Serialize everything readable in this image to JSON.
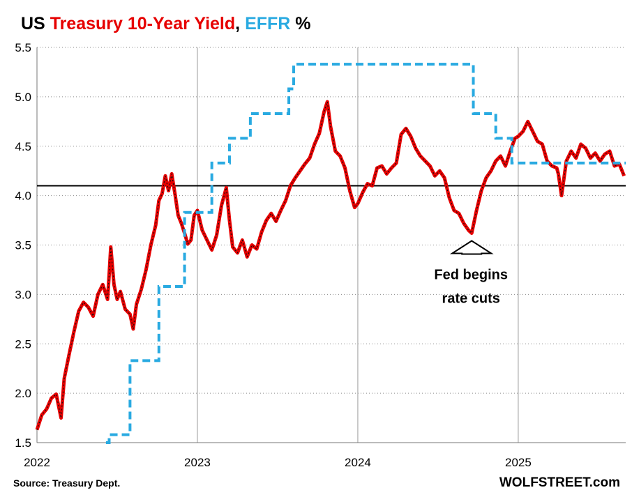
{
  "chart_data": {
    "type": "line",
    "title": {
      "parts": [
        {
          "text": "US ",
          "color": "#000000"
        },
        {
          "text": "Treasury 10-Year Yield",
          "color": "#e60000"
        },
        {
          "text": ", ",
          "color": "#000000"
        },
        {
          "text": "EFFR",
          "color": "#29aae1"
        },
        {
          "text": " %",
          "color": "#000000"
        }
      ]
    },
    "ylim": [
      1.5,
      5.5
    ],
    "xlim": [
      2022.0,
      2025.67
    ],
    "y_ticks": [
      "1.5",
      "2.0",
      "2.5",
      "3.0",
      "3.5",
      "4.0",
      "4.5",
      "5.0",
      "5.5"
    ],
    "y_tick_values": [
      1.5,
      2.0,
      2.5,
      3.0,
      3.5,
      4.0,
      4.5,
      5.0,
      5.5
    ],
    "x_ticks": [
      "2022",
      "2023",
      "2024",
      "2025"
    ],
    "x_tick_values": [
      2022,
      2023,
      2024,
      2025
    ],
    "reference_line": {
      "y": 4.1,
      "color": "#000000"
    },
    "annotation": {
      "lines": [
        "Fed begins",
        "rate cuts"
      ],
      "points_to_x": 2024.71,
      "points_to_y": 3.62
    },
    "source": "Source: Treasury Dept.",
    "brand": "WOLFSTREET.com",
    "series": [
      {
        "name": "Treasury 10-Year Yield",
        "color": "#e60000",
        "style": "solid",
        "x": [
          2022.0,
          2022.03,
          2022.06,
          2022.09,
          2022.12,
          2022.15,
          2022.17,
          2022.2,
          2022.23,
          2022.26,
          2022.29,
          2022.32,
          2022.35,
          2022.38,
          2022.41,
          2022.44,
          2022.45,
          2022.46,
          2022.48,
          2022.5,
          2022.52,
          2022.55,
          2022.58,
          2022.6,
          2022.62,
          2022.65,
          2022.68,
          2022.71,
          2022.74,
          2022.76,
          2022.78,
          2022.8,
          2022.82,
          2022.84,
          2022.86,
          2022.88,
          2022.9,
          2022.92,
          2022.94,
          2022.96,
          2022.98,
          2023.0,
          2023.03,
          2023.06,
          2023.09,
          2023.12,
          2023.15,
          2023.18,
          2023.2,
          2023.22,
          2023.25,
          2023.28,
          2023.31,
          2023.34,
          2023.37,
          2023.4,
          2023.43,
          2023.46,
          2023.49,
          2023.52,
          2023.55,
          2023.58,
          2023.61,
          2023.64,
          2023.67,
          2023.7,
          2023.73,
          2023.76,
          2023.79,
          2023.81,
          2023.83,
          2023.86,
          2023.89,
          2023.92,
          2023.95,
          2023.98,
          2024.0,
          2024.03,
          2024.06,
          2024.09,
          2024.12,
          2024.15,
          2024.18,
          2024.21,
          2024.24,
          2024.27,
          2024.3,
          2024.33,
          2024.36,
          2024.39,
          2024.42,
          2024.45,
          2024.48,
          2024.51,
          2024.54,
          2024.57,
          2024.6,
          2024.63,
          2024.66,
          2024.69,
          2024.71,
          2024.74,
          2024.77,
          2024.8,
          2024.83,
          2024.86,
          2024.89,
          2024.92,
          2024.95,
          2024.98,
          2025.0,
          2025.03,
          2025.06,
          2025.09,
          2025.12,
          2025.15,
          2025.18,
          2025.21,
          2025.24,
          2025.25,
          2025.27,
          2025.3,
          2025.33,
          2025.36,
          2025.39,
          2025.42,
          2025.45,
          2025.48,
          2025.51,
          2025.54,
          2025.57,
          2025.6,
          2025.63,
          2025.66
        ],
        "values": [
          1.63,
          1.78,
          1.84,
          1.95,
          1.99,
          1.75,
          2.15,
          2.39,
          2.62,
          2.83,
          2.92,
          2.87,
          2.78,
          3.0,
          3.1,
          2.95,
          3.2,
          3.48,
          3.1,
          2.95,
          3.03,
          2.85,
          2.8,
          2.65,
          2.9,
          3.05,
          3.25,
          3.5,
          3.7,
          3.95,
          4.02,
          4.2,
          4.05,
          4.22,
          4.02,
          3.8,
          3.72,
          3.62,
          3.51,
          3.55,
          3.8,
          3.85,
          3.65,
          3.55,
          3.45,
          3.6,
          3.9,
          4.08,
          3.75,
          3.48,
          3.42,
          3.55,
          3.38,
          3.5,
          3.46,
          3.63,
          3.75,
          3.82,
          3.74,
          3.85,
          3.95,
          4.1,
          4.18,
          4.25,
          4.32,
          4.38,
          4.52,
          4.63,
          4.85,
          4.95,
          4.7,
          4.45,
          4.4,
          4.28,
          4.05,
          3.88,
          3.92,
          4.03,
          4.12,
          4.1,
          4.28,
          4.3,
          4.22,
          4.28,
          4.33,
          4.62,
          4.68,
          4.6,
          4.48,
          4.4,
          4.35,
          4.3,
          4.2,
          4.25,
          4.18,
          3.98,
          3.85,
          3.82,
          3.72,
          3.65,
          3.62,
          3.85,
          4.05,
          4.18,
          4.25,
          4.35,
          4.4,
          4.3,
          4.45,
          4.58,
          4.6,
          4.65,
          4.75,
          4.65,
          4.55,
          4.52,
          4.35,
          4.3,
          4.28,
          4.22,
          4.0,
          4.35,
          4.45,
          4.38,
          4.52,
          4.48,
          4.38,
          4.43,
          4.35,
          4.42,
          4.45,
          4.3,
          4.32,
          4.2
        ]
      },
      {
        "name": "EFFR",
        "color": "#29aae1",
        "style": "dashed-step",
        "x": [
          2022.43,
          2022.45,
          2022.55,
          2022.58,
          2022.73,
          2022.76,
          2022.86,
          2022.92,
          2023.06,
          2023.09,
          2023.2,
          2023.33,
          2023.57,
          2023.6,
          2024.71,
          2024.72,
          2024.85,
          2024.86,
          2024.96,
          2025.67
        ],
        "values": [
          1.48,
          1.58,
          1.58,
          2.33,
          2.33,
          3.08,
          3.08,
          3.83,
          3.83,
          4.33,
          4.58,
          4.83,
          5.08,
          5.33,
          5.33,
          4.83,
          4.83,
          4.58,
          4.33,
          4.33
        ]
      }
    ]
  }
}
